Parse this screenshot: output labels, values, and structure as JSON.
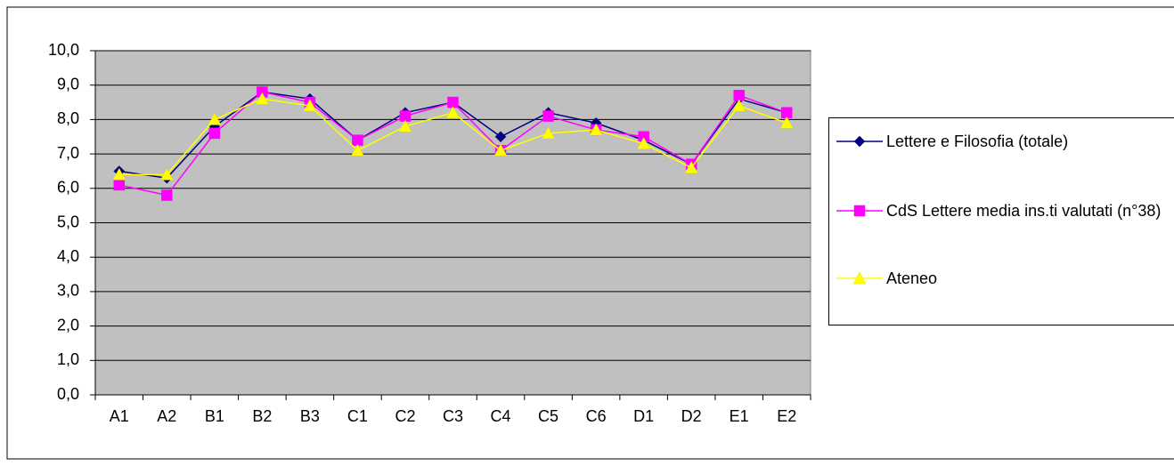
{
  "chart_data": {
    "type": "line",
    "categories": [
      "A1",
      "A2",
      "B1",
      "B2",
      "B3",
      "C1",
      "C2",
      "C3",
      "C4",
      "C5",
      "C6",
      "D1",
      "D2",
      "E1",
      "E2"
    ],
    "series": [
      {
        "name": "Lettere e Filosofia (totale)",
        "color": "#000080",
        "marker": "diamond",
        "values": [
          6.5,
          6.3,
          7.8,
          8.8,
          8.6,
          7.4,
          8.2,
          8.5,
          7.5,
          8.2,
          7.9,
          7.4,
          6.7,
          8.6,
          8.2
        ]
      },
      {
        "name": "CdS Lettere media ins.ti valutati (n°38)",
        "color": "#ff00ff",
        "marker": "square",
        "values": [
          6.1,
          5.8,
          7.6,
          8.8,
          8.5,
          7.4,
          8.1,
          8.5,
          7.1,
          8.1,
          7.7,
          7.5,
          6.7,
          8.7,
          8.2
        ]
      },
      {
        "name": "Ateneo",
        "color": "#ffff00",
        "marker": "triangle",
        "values": [
          6.4,
          6.4,
          8.0,
          8.6,
          8.4,
          7.1,
          7.8,
          8.2,
          7.1,
          7.6,
          7.7,
          7.3,
          6.6,
          8.4,
          7.9
        ]
      }
    ],
    "ylim": [
      0,
      10
    ],
    "yticks": [
      {
        "value": 0,
        "label": "0,0"
      },
      {
        "value": 1,
        "label": "1,0"
      },
      {
        "value": 2,
        "label": "2,0"
      },
      {
        "value": 3,
        "label": "3,0"
      },
      {
        "value": 4,
        "label": "4,0"
      },
      {
        "value": 5,
        "label": "5,0"
      },
      {
        "value": 6,
        "label": "6,0"
      },
      {
        "value": 7,
        "label": "7,0"
      },
      {
        "value": 8,
        "label": "8,0"
      },
      {
        "value": 9,
        "label": "9,0"
      },
      {
        "value": 10,
        "label": "10,0"
      }
    ],
    "grid": true,
    "legend": "right"
  }
}
